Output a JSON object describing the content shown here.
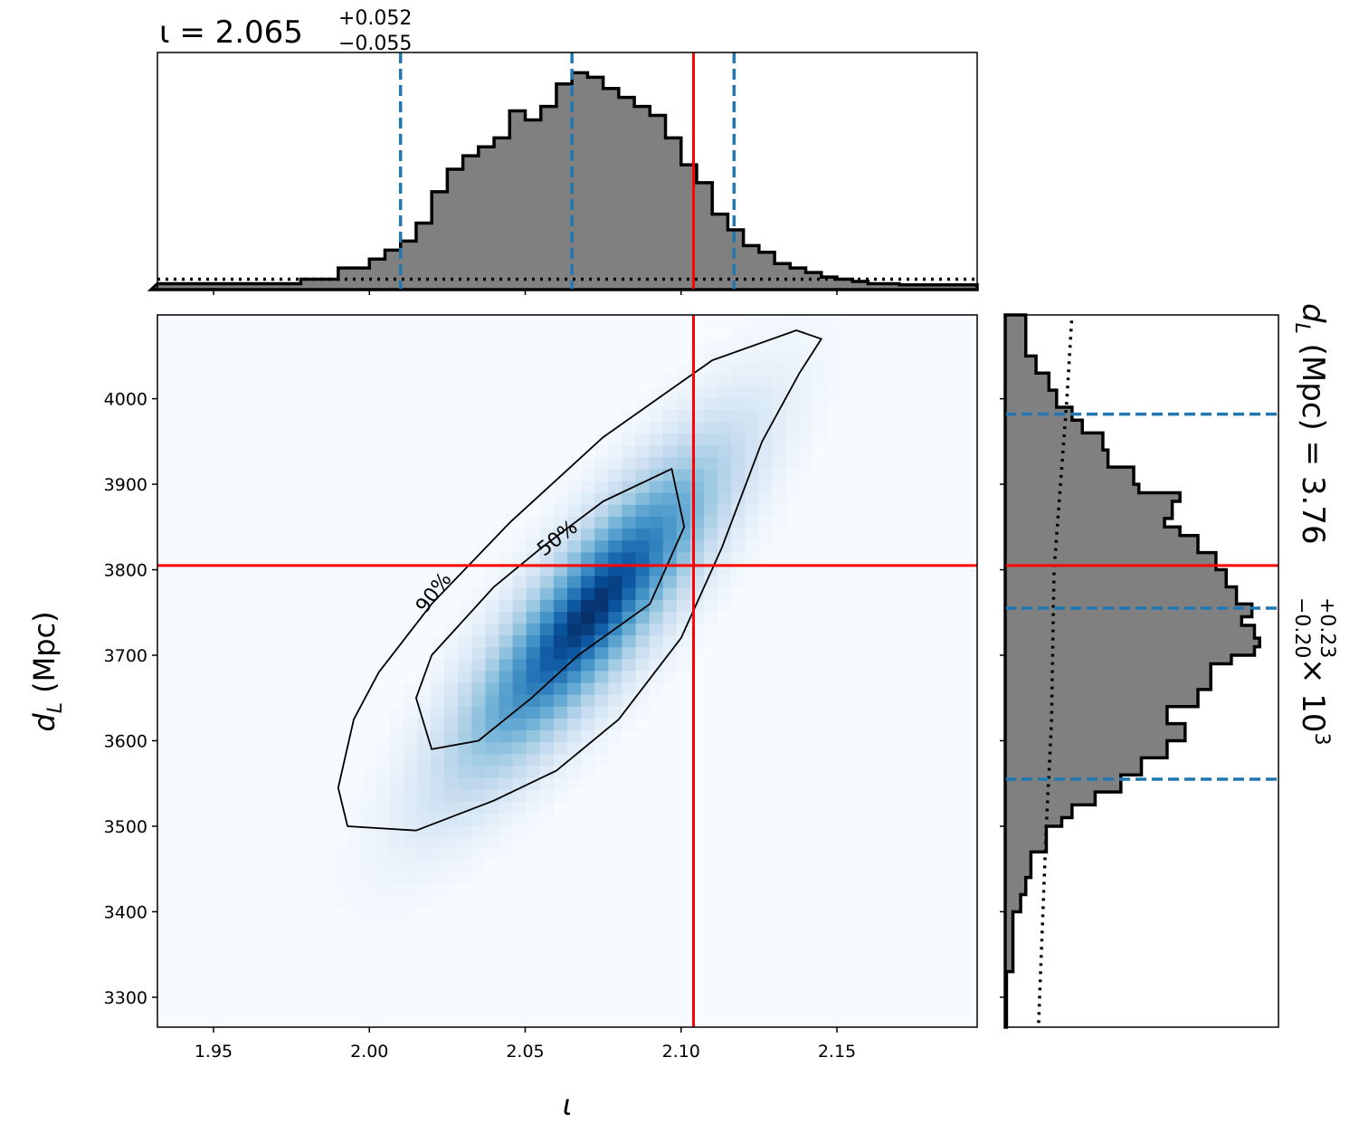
{
  "chart_data": [
    {
      "panel": "top-marginal",
      "type": "histogram",
      "title": {
        "prefix": "ι = 2.065",
        "upper": "+0.052",
        "lower": "−0.055"
      },
      "x_range": [
        1.932,
        2.195
      ],
      "quantile_lines": [
        2.01,
        2.065,
        2.117
      ],
      "truth_line": 2.104,
      "bins_x": [
        1.93,
        1.978,
        1.99,
        2.0,
        2.005,
        2.01,
        2.015,
        2.02,
        2.025,
        2.03,
        2.035,
        2.04,
        2.045,
        2.05,
        2.055,
        2.06,
        2.065,
        2.07,
        2.075,
        2.08,
        2.085,
        2.09,
        2.095,
        2.1,
        2.105,
        2.11,
        2.115,
        2.12,
        2.125,
        2.13,
        2.135,
        2.14,
        2.145,
        2.15,
        2.155,
        2.16,
        2.17,
        2.196
      ],
      "bin_heights": [
        0.01,
        0.03,
        0.08,
        0.12,
        0.16,
        0.2,
        0.28,
        0.42,
        0.52,
        0.58,
        0.62,
        0.66,
        0.78,
        0.74,
        0.8,
        0.9,
        0.95,
        0.93,
        0.88,
        0.84,
        0.8,
        0.76,
        0.66,
        0.54,
        0.46,
        0.32,
        0.25,
        0.18,
        0.15,
        0.1,
        0.08,
        0.06,
        0.04,
        0.03,
        0.02,
        0.01,
        0.005
      ],
      "prior_level": 0.03
    },
    {
      "panel": "joint",
      "type": "heatmap",
      "xlabel": "ι",
      "ylabel": "d_L (Mpc)",
      "x_range": [
        1.932,
        2.195
      ],
      "y_range": [
        3265,
        4098
      ],
      "x_ticks": [
        "1.95",
        "2.00",
        "2.05",
        "2.10",
        "2.15"
      ],
      "x_tick_values": [
        1.95,
        2.0,
        2.05,
        2.1,
        2.15
      ],
      "y_ticks": [
        "3300",
        "3400",
        "3500",
        "3600",
        "3700",
        "3800",
        "3900",
        "4000"
      ],
      "y_tick_values": [
        3300,
        3400,
        3500,
        3600,
        3700,
        3800,
        3900,
        4000
      ],
      "density": {
        "center": [
          2.071,
          3750
        ],
        "sd_x": 0.027,
        "sd_y": 120,
        "correlation": 0.85
      },
      "contours": [
        {
          "label": "90%",
          "points": [
            [
              2.145,
              4070
            ],
            [
              2.138,
              4030
            ],
            [
              2.126,
              3950
            ],
            [
              2.113,
              3825
            ],
            [
              2.1,
              3720
            ],
            [
              2.08,
              3625
            ],
            [
              2.06,
              3565
            ],
            [
              2.04,
              3530
            ],
            [
              2.015,
              3495
            ],
            [
              1.993,
              3500
            ],
            [
              1.99,
              3545
            ],
            [
              1.995,
              3625
            ],
            [
              2.003,
              3680
            ],
            [
              2.02,
              3760
            ],
            [
              2.045,
              3855
            ],
            [
              2.075,
              3955
            ],
            [
              2.11,
              4045
            ],
            [
              2.137,
              4080
            ]
          ]
        },
        {
          "label": "50%",
          "points": [
            [
              2.097,
              3918
            ],
            [
              2.101,
              3850
            ],
            [
              2.09,
              3760
            ],
            [
              2.067,
              3700
            ],
            [
              2.052,
              3650
            ],
            [
              2.035,
              3600
            ],
            [
              2.02,
              3590
            ],
            [
              2.015,
              3650
            ],
            [
              2.02,
              3700
            ],
            [
              2.04,
              3780
            ],
            [
              2.055,
              3825
            ],
            [
              2.075,
              3880
            ]
          ]
        }
      ],
      "truth": [
        2.104,
        3805
      ]
    },
    {
      "panel": "right-marginal",
      "type": "histogram",
      "orientation": "horizontal",
      "title": {
        "prefix": "d",
        "subscript": "L",
        "suffix_unit": "(Mpc) = 3.76",
        "upper": "+0.23",
        "lower": "−0.20",
        "multiplier": "× 10",
        "exponent": "3"
      },
      "y_range": [
        3265,
        4098
      ],
      "quantile_lines": [
        3555,
        3755,
        3982
      ],
      "truth_line": 3805,
      "bins_y": [
        3265,
        3330,
        3400,
        3420,
        3440,
        3470,
        3500,
        3510,
        3525,
        3540,
        3560,
        3580,
        3600,
        3620,
        3640,
        3660,
        3690,
        3700,
        3710,
        3720,
        3735,
        3745,
        3760,
        3780,
        3800,
        3820,
        3840,
        3850,
        3860,
        3880,
        3890,
        3900,
        3920,
        3940,
        3960,
        3975,
        3990,
        4010,
        4030,
        4050,
        4098
      ],
      "bin_heights": [
        0.005,
        0.03,
        0.06,
        0.08,
        0.1,
        0.16,
        0.22,
        0.26,
        0.35,
        0.45,
        0.53,
        0.63,
        0.7,
        0.63,
        0.75,
        0.8,
        0.88,
        0.97,
        0.99,
        0.97,
        0.92,
        0.96,
        0.9,
        0.86,
        0.82,
        0.75,
        0.68,
        0.62,
        0.65,
        0.68,
        0.52,
        0.5,
        0.4,
        0.38,
        0.3,
        0.26,
        0.2,
        0.17,
        0.12,
        0.08
      ],
      "prior_points": [
        [
          3270,
          0.13
        ],
        [
          3500,
          0.16
        ],
        [
          3620,
          0.18
        ],
        [
          3800,
          0.19
        ],
        [
          4000,
          0.24
        ],
        [
          4098,
          0.26
        ]
      ]
    }
  ]
}
